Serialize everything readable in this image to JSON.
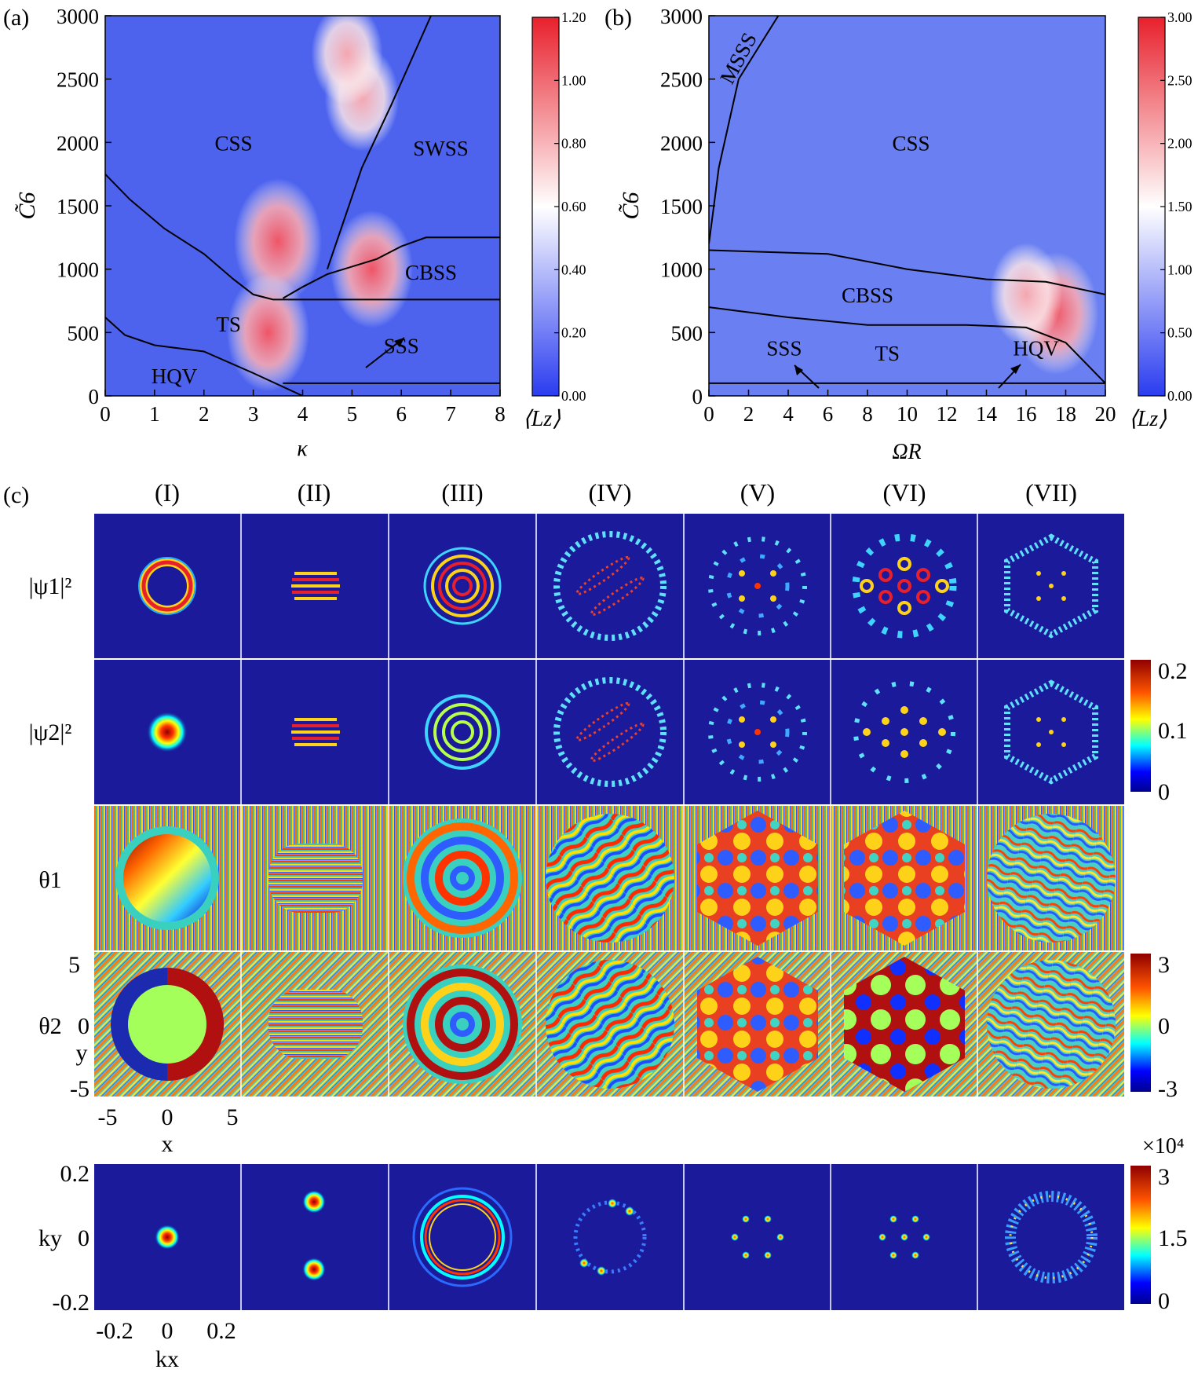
{
  "chart_data": [
    {
      "panel": "(a)",
      "type": "heatmap",
      "xlabel": "κ",
      "ylabel": "C̃6",
      "xlim": [
        0,
        8
      ],
      "ylim": [
        0,
        3000
      ],
      "x_ticks": [
        "0",
        "1",
        "2",
        "3",
        "4",
        "5",
        "6",
        "7",
        "8"
      ],
      "y_ticks": [
        "0",
        "500",
        "1000",
        "1500",
        "2000",
        "2500",
        "3000"
      ],
      "colorbar": {
        "label": "⟨Lz⟩",
        "ticks": [
          "0.00",
          "0.20",
          "0.40",
          "0.60",
          "0.80",
          "1.00",
          "1.20"
        ],
        "range": [
          0,
          1.2
        ]
      },
      "regions": [
        {
          "label": "CSS",
          "x": 2.6,
          "y": 2000
        },
        {
          "label": "SWSS",
          "x": 6.8,
          "y": 1960
        },
        {
          "label": "CBSS",
          "x": 6.6,
          "y": 980
        },
        {
          "label": "TS",
          "x": 2.5,
          "y": 570
        },
        {
          "label": "SSS",
          "x": 6.0,
          "y": 400
        },
        {
          "label": "HQV",
          "x": 1.4,
          "y": 160
        }
      ],
      "boundaries": [
        [
          [
            0,
            1750
          ],
          [
            0.5,
            1550
          ],
          [
            1.2,
            1320
          ],
          [
            2,
            1120
          ],
          [
            2.6,
            920
          ],
          [
            3,
            800
          ],
          [
            3.4,
            760
          ],
          [
            3.6,
            760
          ]
        ],
        [
          [
            3.6,
            760
          ],
          [
            8,
            760
          ]
        ],
        [
          [
            0,
            620
          ],
          [
            0.4,
            480
          ],
          [
            1,
            400
          ],
          [
            2,
            350
          ],
          [
            3,
            180
          ],
          [
            4,
            0
          ]
        ],
        [
          [
            3.6,
            770
          ],
          [
            4,
            860
          ],
          [
            4.5,
            960
          ],
          [
            5,
            1020
          ],
          [
            5.5,
            1080
          ],
          [
            6,
            1180
          ],
          [
            6.5,
            1250
          ],
          [
            8,
            1250
          ]
        ],
        [
          [
            4.5,
            1000
          ],
          [
            5.2,
            1800
          ],
          [
            5.8,
            2300
          ],
          [
            6.6,
            3000
          ]
        ],
        [
          [
            3.6,
            100
          ],
          [
            8,
            100
          ]
        ]
      ],
      "hotspots": [
        {
          "x": 5.2,
          "y": 2350,
          "value": 0.75
        },
        {
          "x": 4.9,
          "y": 2700,
          "value": 0.7
        },
        {
          "x": 3.5,
          "y": 1220,
          "value": 1.0
        },
        {
          "x": 3.3,
          "y": 500,
          "value": 0.9
        },
        {
          "x": 5.4,
          "y": 1000,
          "value": 0.9
        }
      ],
      "background_value": 0.2
    },
    {
      "panel": "(b)",
      "type": "heatmap",
      "xlabel": "ΩR",
      "ylabel": "C̃6",
      "xlim": [
        0,
        20
      ],
      "ylim": [
        0,
        3000
      ],
      "x_ticks": [
        "0",
        "2",
        "4",
        "6",
        "8",
        "10",
        "12",
        "14",
        "16",
        "18",
        "20"
      ],
      "y_ticks": [
        "0",
        "500",
        "1000",
        "1500",
        "2000",
        "2500",
        "3000"
      ],
      "colorbar": {
        "label": "⟨Lz⟩",
        "ticks": [
          "0.00",
          "0.50",
          "1.00",
          "1.50",
          "2.00",
          "2.50",
          "3.00"
        ],
        "range": [
          0,
          3
        ]
      },
      "regions": [
        {
          "label": "MSSS",
          "x": 1.8,
          "y": 2700
        },
        {
          "label": "CSS",
          "x": 10.2,
          "y": 2000
        },
        {
          "label": "CBSS",
          "x": 8,
          "y": 800
        },
        {
          "label": "SSS",
          "x": 3.8,
          "y": 380
        },
        {
          "label": "TS",
          "x": 9,
          "y": 340
        },
        {
          "label": "HQV",
          "x": 16.5,
          "y": 380
        }
      ],
      "boundaries": [
        [
          [
            0,
            1200
          ],
          [
            0.5,
            1800
          ],
          [
            1.5,
            2500
          ],
          [
            3.5,
            3000
          ]
        ],
        [
          [
            0,
            1150
          ],
          [
            6,
            1120
          ],
          [
            10,
            1000
          ],
          [
            14,
            920
          ],
          [
            17,
            900
          ],
          [
            20,
            800
          ]
        ],
        [
          [
            0,
            700
          ],
          [
            4,
            620
          ],
          [
            8,
            560
          ],
          [
            13,
            560
          ],
          [
            16,
            540
          ],
          [
            18,
            420
          ],
          [
            20,
            100
          ]
        ],
        [
          [
            0,
            100
          ],
          [
            20,
            100
          ]
        ]
      ],
      "hotspots": [
        {
          "x": 17.5,
          "y": 650,
          "value": 2.4
        },
        {
          "x": 16,
          "y": 800,
          "value": 1.8
        }
      ],
      "background_value": 0.6
    }
  ],
  "labels": {
    "a": "(a)",
    "b": "(b)",
    "c": "(c)"
  },
  "panel_c": {
    "columns": [
      "(I)",
      "(II)",
      "(III)",
      "(IV)",
      "(V)",
      "(VI)",
      "(VII)"
    ],
    "rows": [
      "|ψ1|²",
      "|ψ2|²",
      "θ1",
      "θ2"
    ],
    "density_colorbar": [
      "0.2",
      "0.1",
      "0"
    ],
    "phase_colorbar": [
      "3",
      "0",
      "-3"
    ],
    "momentum_colorbar": [
      "3",
      "1.5",
      "0"
    ],
    "momentum_scale": "×10⁴",
    "xy_axis": {
      "x_ticks": [
        "-5",
        "0",
        "5"
      ],
      "y_ticks": [
        "5",
        "0",
        "-5"
      ],
      "xlabel": "x",
      "ylabel": "y"
    },
    "k_axis": {
      "x_ticks": [
        "-0.2",
        "0",
        "0.2"
      ],
      "y_ticks": [
        "0.2",
        "0",
        "-0.2"
      ],
      "xlabel": "kx",
      "ylabel": "ky"
    }
  },
  "colors": {
    "map_low": "#2a3cf0",
    "map_mid": "#ffffff",
    "map_high": "#e8202c",
    "panel_bg": "#1a1a9a"
  }
}
